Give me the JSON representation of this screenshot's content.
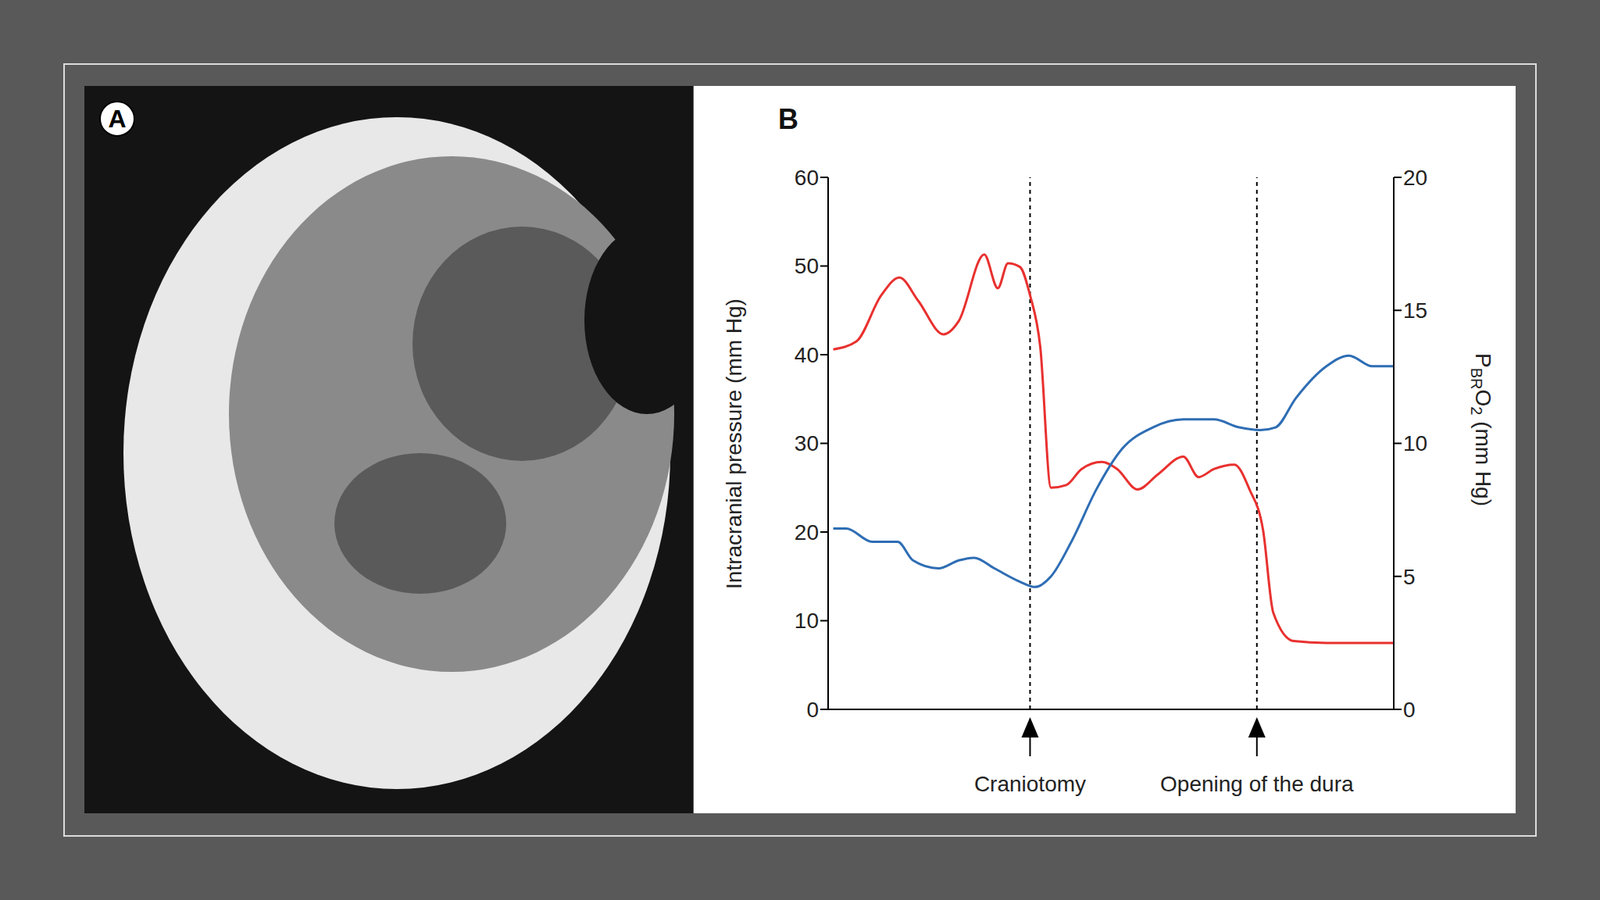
{
  "image_panel": {
    "label": "A"
  },
  "chart_data": {
    "type": "line",
    "panel_label": "B",
    "xlim": [
      0,
      100
    ],
    "xticks": [],
    "ylabel": "Intracranial pressure (mm Hg)",
    "ylim": [
      0,
      60
    ],
    "yticks": [
      0,
      10,
      20,
      30,
      40,
      50,
      60
    ],
    "y2label_parts": [
      {
        "text": "P",
        "sub": false
      },
      {
        "text": "BR",
        "sub": true
      },
      {
        "text": "O",
        "sub": false
      },
      {
        "text": "2",
        "sub": true
      },
      {
        "text": " (mm Hg)",
        "sub": false
      }
    ],
    "y2lim": [
      0,
      20
    ],
    "y2ticks": [
      0,
      5,
      10,
      15,
      20
    ],
    "series": [
      {
        "color": "#e8312f",
        "axis": "y",
        "x": [
          0.9,
          5,
          9.4,
          12.6,
          15.9,
          20.4,
          23.1,
          27.6,
          30,
          31.8,
          33.9,
          35.7,
          37.5,
          39.4,
          42.1,
          44.8,
          48.4,
          51.1,
          54.7,
          58.3,
          62.8,
          65.5,
          68.2,
          71.8,
          74.5,
          76.9,
          78.7,
          82.3,
          88.1,
          100
        ],
        "values": [
          40.6,
          41.5,
          46.7,
          48.7,
          46.1,
          42.3,
          43.8,
          51.3,
          47.5,
          50.3,
          49.9,
          46.7,
          40.9,
          25,
          25.3,
          27.1,
          27.9,
          27.1,
          24.8,
          26.5,
          28.5,
          26.2,
          27.1,
          27.6,
          24.8,
          20.2,
          10.9,
          7.7,
          7.5,
          7.5
        ]
      },
      {
        "color": "#2e6db4",
        "axis": "y2",
        "x": [
          0.9,
          3.2,
          7.8,
          12.3,
          15,
          19.5,
          23.1,
          25.8,
          29.4,
          33.9,
          36.6,
          39.4,
          43,
          47.5,
          52,
          57.4,
          62.8,
          68.2,
          72.7,
          76.4,
          79.1,
          82.7,
          88.1,
          92.1,
          96.2,
          100
        ],
        "values": [
          6.8,
          6.8,
          6.3,
          6.3,
          5.6,
          5.3,
          5.6,
          5.7,
          5.3,
          4.8,
          4.6,
          5.0,
          6.3,
          8.3,
          9.8,
          10.6,
          10.9,
          10.9,
          10.6,
          10.5,
          10.6,
          11.7,
          12.9,
          13.3,
          12.9,
          12.9
        ]
      }
    ],
    "annotations": [
      {
        "x": 35.7,
        "text": "Craniotomy"
      },
      {
        "x": 75.8,
        "text": "Opening of the dura"
      }
    ]
  }
}
